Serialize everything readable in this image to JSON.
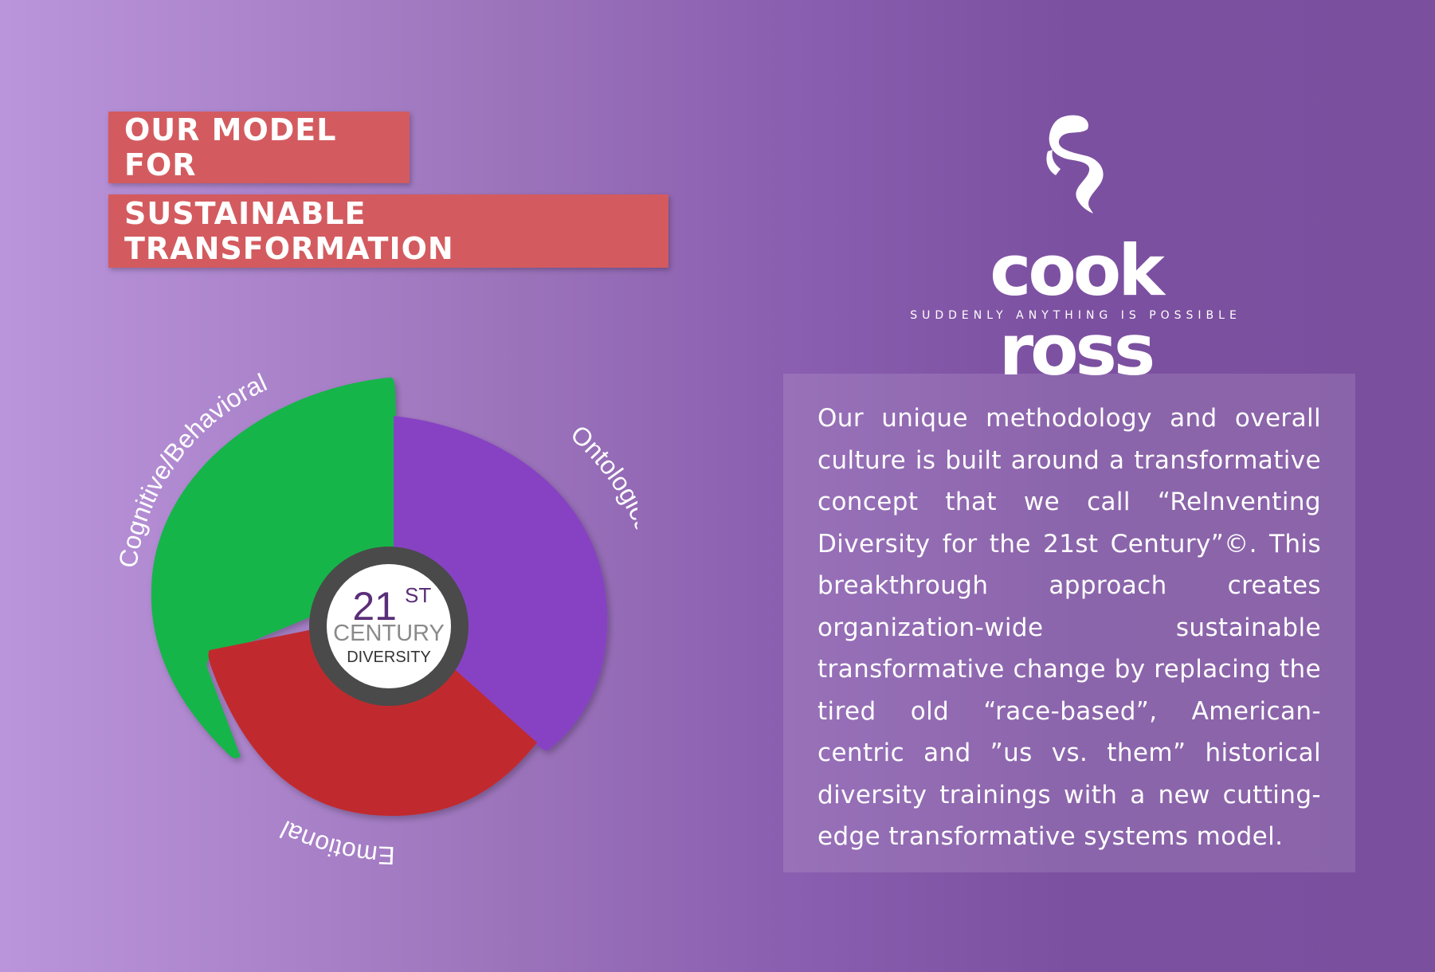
{
  "title": {
    "line1": "OUR MODEL FOR",
    "line2": "SUSTAINABLE TRANSFORMATION"
  },
  "brand": {
    "name": "cook ross",
    "tagline": "SUDDENLY ANYTHING IS POSSIBLE",
    "logo_icon": "swirl-logo-icon"
  },
  "description": "Our unique methodology and overall culture is built around a transformative concept that we call “ReInventing Diversity for the 21st Century”©. This breakthrough approach creates organization-wide sustainable transformative change by replacing the tired old “race-based”, American-centric and ”us vs. them” historical diversity trainings with a new cutting-edge transformative systems model.",
  "diagram": {
    "segments": [
      {
        "label": "Cognitive/Behavioral",
        "color": "#12b548"
      },
      {
        "label": "Ontological",
        "color": "#8743c4"
      },
      {
        "label": "Emotional",
        "color": "#c0292e"
      }
    ],
    "center": {
      "number": "21",
      "superscript": "ST",
      "line2": "CENTURY",
      "line3": "DIVERSITY"
    }
  },
  "colors": {
    "title_bg": "#d35b5f",
    "ring": "#4a4a4a",
    "center_number": "#5a2e78"
  }
}
